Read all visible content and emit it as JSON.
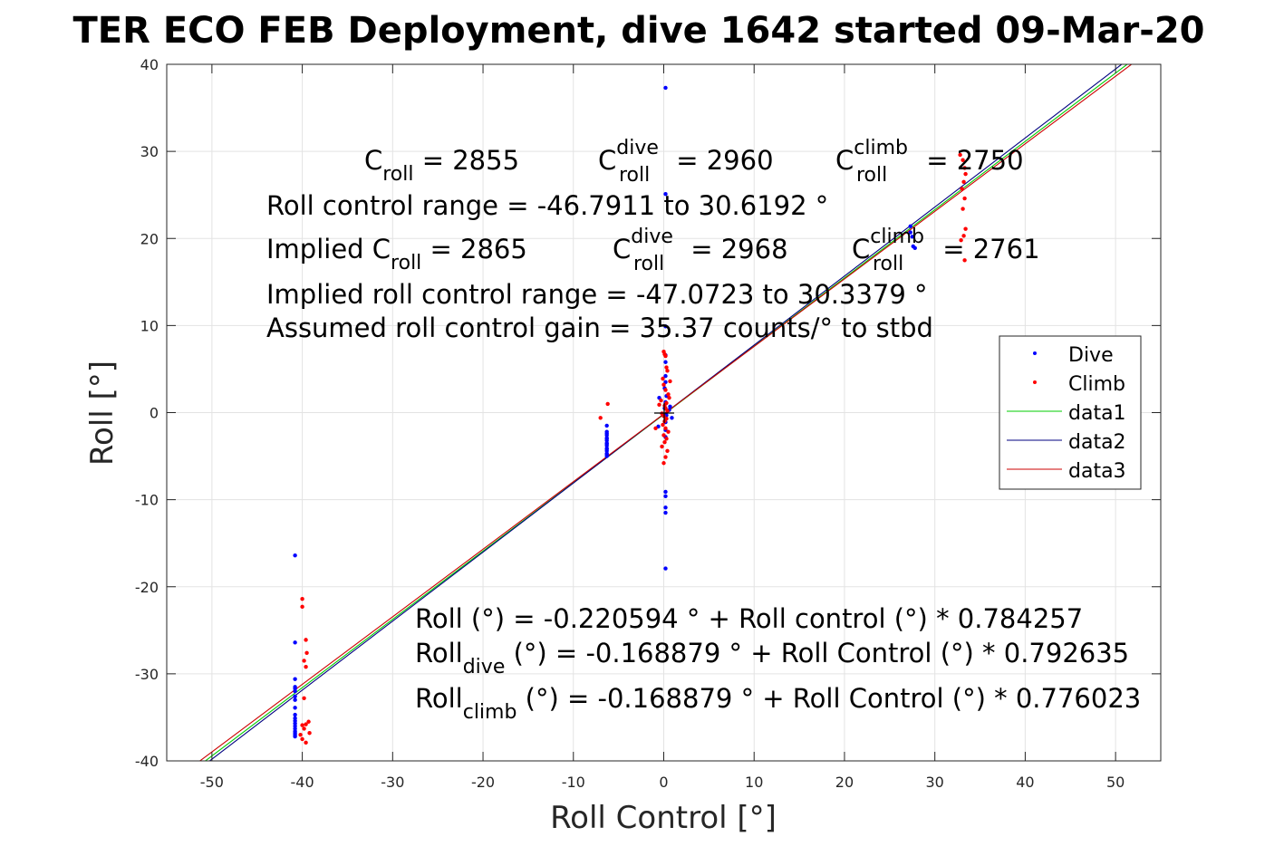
{
  "chart_data": {
    "type": "scatter",
    "title": "TER ECO FEB Deployment, dive 1642 started 09-Mar-20",
    "xlabel": "Roll Control [°]",
    "ylabel": "Roll [°]",
    "xlim": [
      -55,
      55
    ],
    "ylim": [
      -40,
      40
    ],
    "x_ticks": [
      -50,
      -40,
      -30,
      -20,
      -10,
      0,
      10,
      20,
      30,
      40,
      50
    ],
    "y_ticks": [
      -40,
      -30,
      -20,
      -10,
      0,
      10,
      20,
      30,
      40
    ],
    "grid": true,
    "legend_placement": "right",
    "series": [
      {
        "name": "Dive",
        "kind": "points",
        "color": "#0000ff",
        "x": [
          -40.8,
          -40.8,
          -40.8,
          -40.8,
          -40.8,
          -40.8,
          -40.8,
          -40.8,
          -40.8,
          -40.8,
          -40.8,
          -40.8,
          -40.8,
          -40.8,
          -40.8,
          -40.8,
          -40.8,
          -40.8,
          -40.8,
          -6.3,
          -6.3,
          -6.3,
          -6.3,
          -6.3,
          -6.3,
          -6.3,
          -6.3,
          -6.3,
          -6.3,
          -6.3,
          -6.3,
          -6.3,
          -6.3,
          -6.3,
          -6.3,
          0.2,
          0.2,
          0.2,
          0.2,
          0.2,
          0.2,
          0.2,
          0.1,
          0.3,
          0.2,
          0.1,
          0.3,
          0.2,
          0.2,
          0.2,
          0.2,
          0.2,
          0.2,
          0.2,
          0.2,
          0.9,
          0.6,
          -0.5,
          -0.6,
          0.7,
          27.3,
          27.6,
          27.8,
          27.3,
          27.5
        ],
        "y": [
          -16.4,
          -26.4,
          -30.6,
          -31.7,
          -32.6,
          -33.0,
          -33.9,
          -34.7,
          -35.1,
          -35.4,
          -35.7,
          -36.0,
          -36.3,
          -36.6,
          -36.8,
          -37.0,
          -37.2,
          -32.0,
          -31.5,
          -1.5,
          -2.2,
          -2.6,
          -2.9,
          -3.2,
          -3.5,
          -3.8,
          -4.1,
          -4.4,
          -4.7,
          -5.0,
          -3.0,
          -2.4,
          -4.2,
          -3.6,
          -4.8,
          37.3,
          25.1,
          9.9,
          6.6,
          5.8,
          4.2,
          3.5,
          2.8,
          1.9,
          1.2,
          0.5,
          -0.3,
          -1.1,
          -2.0,
          -2.8,
          -9.1,
          -9.6,
          -10.9,
          -11.5,
          -17.9,
          -0.6,
          0.3,
          1.7,
          -1.6,
          0.7,
          20.7,
          19.1,
          18.9,
          21.4,
          20.2
        ]
      },
      {
        "name": "Climb",
        "kind": "points",
        "color": "#ff0000",
        "x": [
          -40.0,
          -40.0,
          -39.6,
          -39.5,
          -39.6,
          -39.8,
          -39.3,
          -39.6,
          -40.0,
          -40.2,
          -39.8,
          -39.2,
          -39.6,
          -40.0,
          -39.8,
          -7.0,
          -6.2,
          0.0,
          0.1,
          0.2,
          0.3,
          0.4,
          -0.1,
          0.0,
          0.2,
          0.5,
          0.6,
          -0.3,
          0.3,
          0.1,
          0.2,
          0.4,
          -0.2,
          0.0,
          0.3,
          0.1,
          -0.1,
          0.2,
          0.5,
          0.0,
          0.3,
          0.1,
          -0.2,
          0.4,
          0.2,
          0.0,
          -0.9,
          -0.5,
          0.7,
          32.8,
          33.1,
          33.3,
          33.4,
          33.2,
          33.0,
          33.3,
          33.1,
          33.4,
          33.2,
          32.9,
          33.3
        ],
        "y": [
          -21.4,
          -22.3,
          -26.1,
          -27.6,
          -29.2,
          -28.5,
          -35.5,
          -35.8,
          -35.9,
          -37.0,
          -36.3,
          -36.8,
          -37.9,
          -37.5,
          -32.8,
          -0.6,
          1.0,
          7.0,
          6.7,
          6.5,
          5.2,
          4.8,
          3.9,
          3.2,
          2.6,
          2.1,
          1.7,
          1.4,
          1.1,
          0.8,
          0.5,
          0.2,
          -0.1,
          -0.4,
          -0.7,
          -1.0,
          -1.4,
          -1.8,
          -2.2,
          -2.6,
          -3.0,
          -3.4,
          -3.9,
          -4.4,
          -5.1,
          -5.8,
          -1.8,
          0.9,
          3.6,
          29.6,
          29.0,
          28.1,
          27.4,
          26.5,
          25.7,
          24.6,
          23.4,
          21.1,
          20.3,
          19.8,
          17.5
        ]
      },
      {
        "name": "data1",
        "kind": "line",
        "color": "#00cc00",
        "x": [
          -55,
          55
        ],
        "y": [
          -43.352,
          42.916
        ]
      },
      {
        "name": "data2",
        "kind": "line",
        "color": "#000080",
        "x": [
          -55,
          55
        ],
        "y": [
          -43.764,
          43.427
        ]
      },
      {
        "name": "data3",
        "kind": "line",
        "color": "#cc0000",
        "x": [
          -55,
          55
        ],
        "y": [
          -42.85,
          42.513
        ]
      }
    ],
    "annotations": {
      "c_roll": {
        "main": "C",
        "sub": "roll",
        "rest": " = 2855"
      },
      "c_roll_dive": {
        "main": "C",
        "sup": "dive",
        "sub": "roll",
        "rest": " = 2960"
      },
      "c_roll_climb": {
        "main": "C",
        "sup": "climb",
        "sub": "roll",
        "rest": " = 2750"
      },
      "range": "Roll control range = -46.7911 to 30.6192 °",
      "implied_c_roll": {
        "main": "Implied C",
        "sub": "roll",
        "rest": " = 2865"
      },
      "implied_c_dive": {
        "main": "C",
        "sup": "dive",
        "sub": "roll",
        "rest": " = 2968"
      },
      "implied_c_climb": {
        "main": "C",
        "sup": "climb",
        "sub": "roll",
        "rest": " = 2761"
      },
      "implied_range": "Implied roll control range = -47.0723 to 30.3379 °",
      "gain": "Assumed roll control gain = 35.37 counts/° to stbd",
      "fit_all": "Roll (°) = -0.220594 ° + Roll control (°) * 0.784257",
      "fit_dive": {
        "main": "Roll",
        "sub": "dive",
        "rest": " (°) = -0.168879 ° + Roll Control (°) * 0.792635"
      },
      "fit_climb": {
        "main": "Roll",
        "sub": "climb",
        "rest": " (°) = -0.168879 ° + Roll Control (°) * 0.776023"
      }
    }
  }
}
